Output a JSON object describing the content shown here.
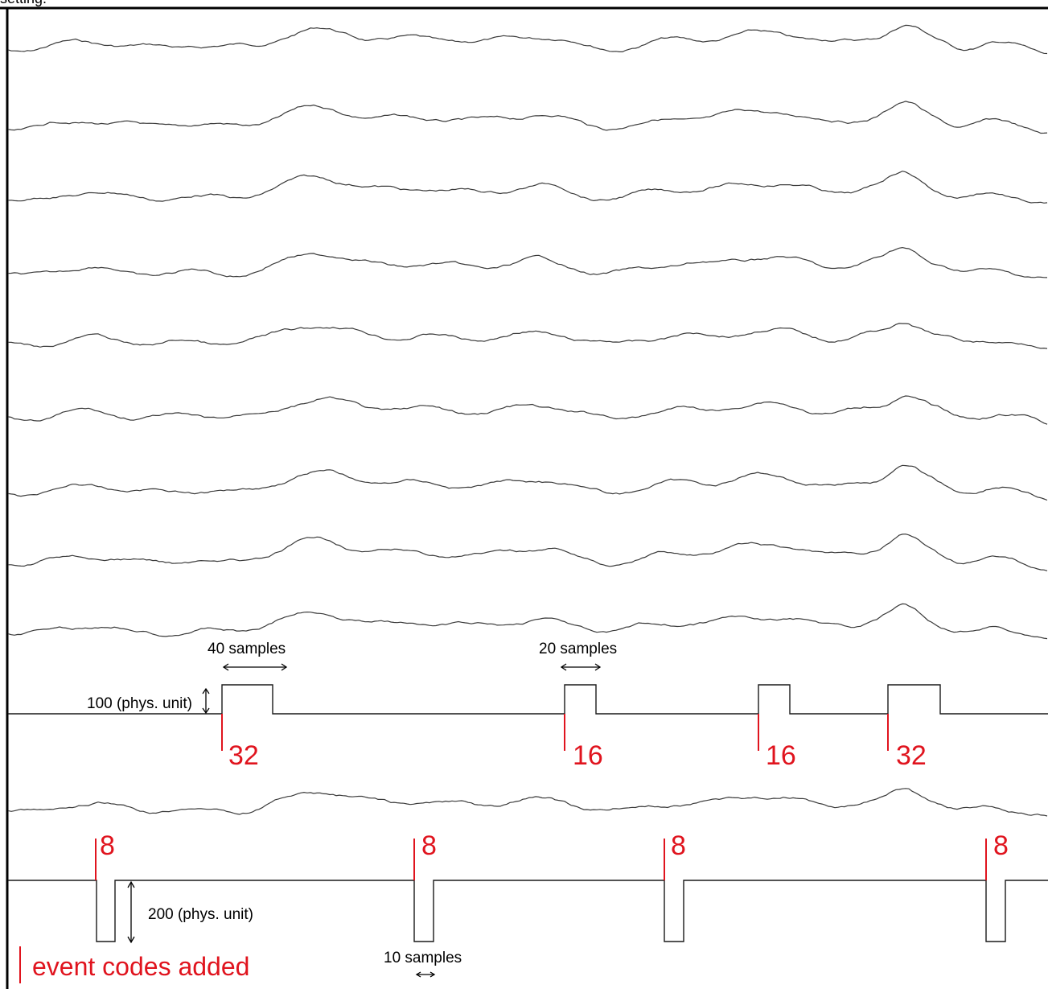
{
  "header": {
    "text": "setting."
  },
  "trigger_channel_1": {
    "pulses": [
      {
        "event_code": "32",
        "width_samples": 40
      },
      {
        "event_code": "16",
        "width_samples": 20
      },
      {
        "event_code": "16",
        "width_samples": 20
      },
      {
        "event_code": "32",
        "width_samples": 40
      }
    ],
    "width_label_a": "40 samples",
    "width_label_b": "20 samples",
    "amplitude_label": "100 (phys. unit)"
  },
  "trigger_channel_2": {
    "pulses": [
      {
        "event_code": "8"
      },
      {
        "event_code": "8"
      },
      {
        "event_code": "8"
      },
      {
        "event_code": "8"
      }
    ],
    "amplitude_label": "200 (phys. unit)",
    "width_label": "10 samples"
  },
  "legend": {
    "text": "event codes added",
    "color": "#e0141e"
  },
  "colors": {
    "event": "#e0141e",
    "trace": "#3a3a3a"
  }
}
